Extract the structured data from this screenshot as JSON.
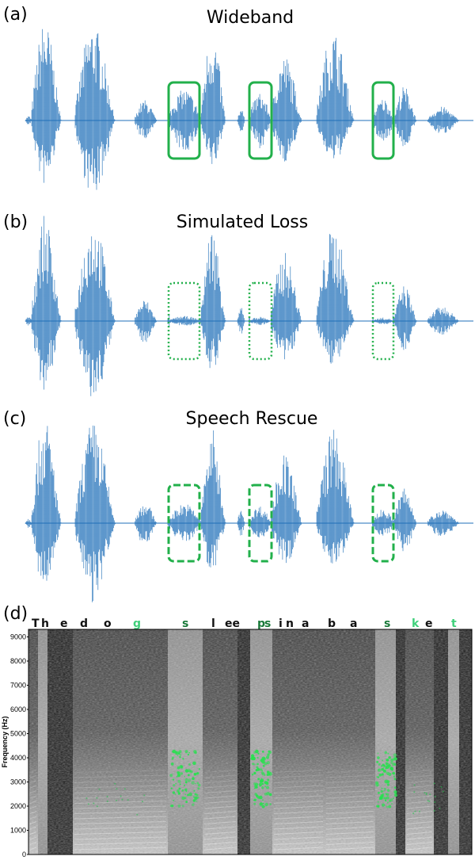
{
  "panels": [
    {
      "letter": "(a)",
      "title": "Wideband",
      "box_style": "solid"
    },
    {
      "letter": "(b)",
      "title": "Simulated Loss",
      "box_style": "dotted"
    },
    {
      "letter": "(c)",
      "title": "Speech Rescue",
      "box_style": "dashed"
    },
    {
      "letter": "(d)",
      "title": ""
    }
  ],
  "colors": {
    "waveform": "#1f6fb8",
    "waveform_light": "#5a9bd6",
    "highlight": "#22b04b",
    "phoneme_dark": "#111111",
    "phoneme_green_dark": "#1a7a3a",
    "phoneme_green_light": "#3fd07a"
  },
  "phonemes": [
    {
      "text": "T",
      "style": "dark"
    },
    {
      "text": "h",
      "style": "dark"
    },
    {
      "text": "e",
      "style": "dark"
    },
    {
      "text": "d",
      "style": "dark"
    },
    {
      "text": "o",
      "style": "dark"
    },
    {
      "text": "g",
      "style": "light"
    },
    {
      "text": "s",
      "style": "green"
    },
    {
      "text": "l",
      "style": "dark"
    },
    {
      "text": "ee",
      "style": "dark"
    },
    {
      "text": "p",
      "style": "green"
    },
    {
      "text": "s",
      "style": "green"
    },
    {
      "text": "i",
      "style": "dark"
    },
    {
      "text": "n",
      "style": "dark"
    },
    {
      "text": "a",
      "style": "dark"
    },
    {
      "text": "b",
      "style": "dark"
    },
    {
      "text": "a",
      "style": "dark"
    },
    {
      "text": "s",
      "style": "green"
    },
    {
      "text": "k",
      "style": "light"
    },
    {
      "text": "e",
      "style": "dark"
    },
    {
      "text": "t",
      "style": "light"
    }
  ],
  "spectrogram": {
    "ylabel": "Frequency (Hz)",
    "yticks": [
      "0",
      "1000",
      "2000",
      "3000",
      "4000",
      "5000",
      "6000",
      "7000",
      "8000",
      "9000"
    ]
  }
}
